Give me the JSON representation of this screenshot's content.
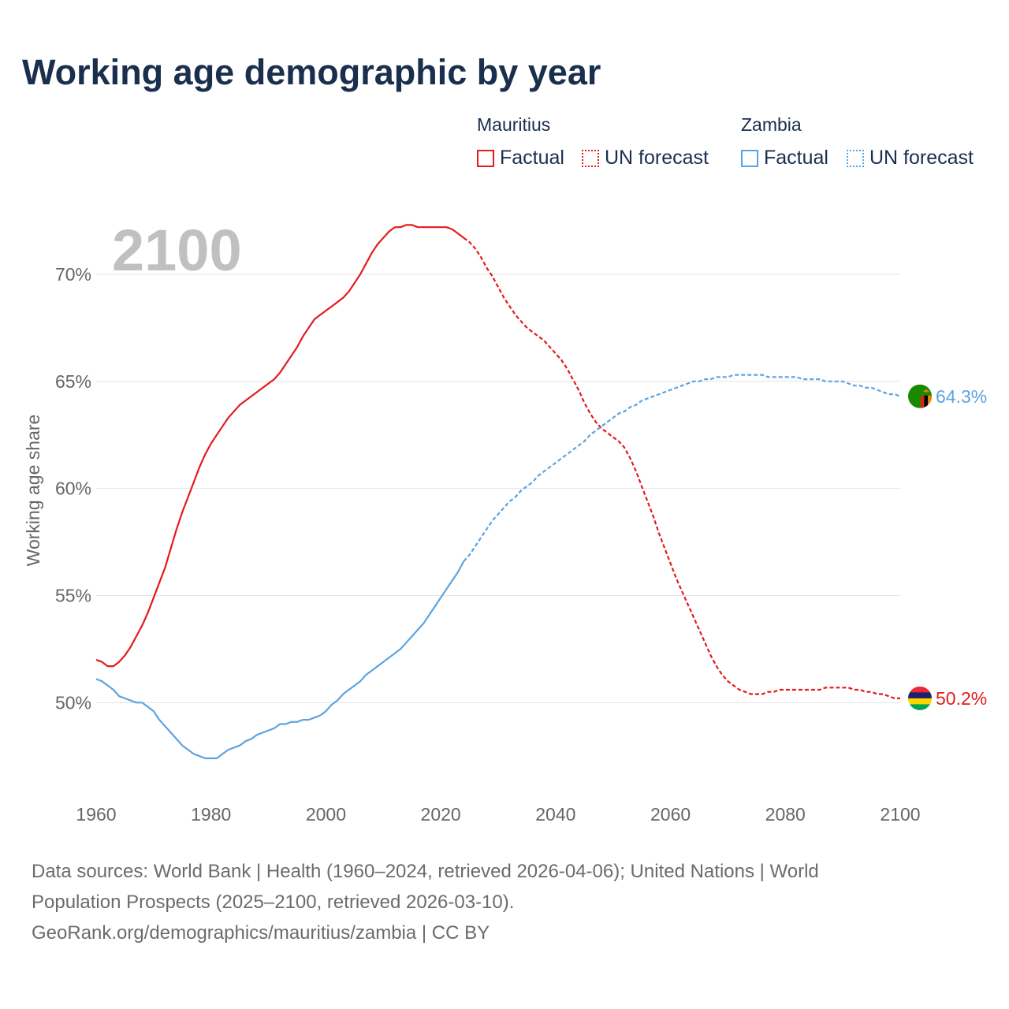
{
  "title": "Working age demographic by year",
  "year_label": "2100",
  "legend": {
    "groups": [
      {
        "name": "Mauritius",
        "color": "#e41a1c",
        "factual_label": "Factual",
        "forecast_label": "UN forecast"
      },
      {
        "name": "Zambia",
        "color": "#5ba3e0",
        "factual_label": "Factual",
        "forecast_label": "UN forecast"
      }
    ]
  },
  "footer": {
    "line1": "Data sources: World Bank | Health (1960–2024, retrieved 2026-04-06); United Nations | World",
    "line2": "Population Prospects (2025–2100, retrieved 2026-03-10).",
    "line3": "GeoRank.org/demographics/mauritius/zambia | CC BY"
  },
  "chart_data": {
    "type": "line",
    "title": "Working age demographic by year",
    "xlabel": "",
    "ylabel": "Working age share",
    "xlim": [
      1960,
      2100
    ],
    "ylim": [
      46,
      72.5
    ],
    "x_ticks": [
      1960,
      1980,
      2000,
      2020,
      2040,
      2060,
      2080,
      2100
    ],
    "y_ticks": [
      50,
      55,
      60,
      65,
      70
    ],
    "y_tick_labels": [
      "50%",
      "55%",
      "60%",
      "65%",
      "70%"
    ],
    "x_tick_labels": [
      "1960",
      "1980",
      "2000",
      "2020",
      "2040",
      "2060",
      "2080",
      "2100"
    ],
    "grid": true,
    "factual_end_year": 2024,
    "series": [
      {
        "name": "Mauritius",
        "color": "#e41a1c",
        "end_label": "50.2%",
        "flag": "mauritius",
        "points": [
          [
            1960,
            52.0
          ],
          [
            1961,
            51.9
          ],
          [
            1962,
            51.7
          ],
          [
            1963,
            51.7
          ],
          [
            1964,
            51.9
          ],
          [
            1965,
            52.2
          ],
          [
            1966,
            52.6
          ],
          [
            1967,
            53.1
          ],
          [
            1968,
            53.6
          ],
          [
            1969,
            54.2
          ],
          [
            1970,
            54.9
          ],
          [
            1971,
            55.6
          ],
          [
            1972,
            56.3
          ],
          [
            1973,
            57.2
          ],
          [
            1974,
            58.1
          ],
          [
            1975,
            58.9
          ],
          [
            1976,
            59.6
          ],
          [
            1977,
            60.3
          ],
          [
            1978,
            61.0
          ],
          [
            1979,
            61.6
          ],
          [
            1980,
            62.1
          ],
          [
            1981,
            62.5
          ],
          [
            1982,
            62.9
          ],
          [
            1983,
            63.3
          ],
          [
            1984,
            63.6
          ],
          [
            1985,
            63.9
          ],
          [
            1986,
            64.1
          ],
          [
            1987,
            64.3
          ],
          [
            1988,
            64.5
          ],
          [
            1989,
            64.7
          ],
          [
            1990,
            64.9
          ],
          [
            1991,
            65.1
          ],
          [
            1992,
            65.4
          ],
          [
            1993,
            65.8
          ],
          [
            1994,
            66.2
          ],
          [
            1995,
            66.6
          ],
          [
            1996,
            67.1
          ],
          [
            1997,
            67.5
          ],
          [
            1998,
            67.9
          ],
          [
            1999,
            68.1
          ],
          [
            2000,
            68.3
          ],
          [
            2001,
            68.5
          ],
          [
            2002,
            68.7
          ],
          [
            2003,
            68.9
          ],
          [
            2004,
            69.2
          ],
          [
            2005,
            69.6
          ],
          [
            2006,
            70.0
          ],
          [
            2007,
            70.5
          ],
          [
            2008,
            71.0
          ],
          [
            2009,
            71.4
          ],
          [
            2010,
            71.7
          ],
          [
            2011,
            72.0
          ],
          [
            2012,
            72.2
          ],
          [
            2013,
            72.2
          ],
          [
            2014,
            72.3
          ],
          [
            2015,
            72.3
          ],
          [
            2016,
            72.2
          ],
          [
            2017,
            72.2
          ],
          [
            2018,
            72.2
          ],
          [
            2019,
            72.2
          ],
          [
            2020,
            72.2
          ],
          [
            2021,
            72.2
          ],
          [
            2022,
            72.1
          ],
          [
            2023,
            71.9
          ],
          [
            2024,
            71.7
          ],
          [
            2025,
            71.5
          ],
          [
            2026,
            71.2
          ],
          [
            2027,
            70.8
          ],
          [
            2028,
            70.3
          ],
          [
            2029,
            69.9
          ],
          [
            2030,
            69.4
          ],
          [
            2031,
            68.9
          ],
          [
            2032,
            68.5
          ],
          [
            2033,
            68.1
          ],
          [
            2034,
            67.8
          ],
          [
            2035,
            67.5
          ],
          [
            2036,
            67.3
          ],
          [
            2037,
            67.1
          ],
          [
            2038,
            66.9
          ],
          [
            2039,
            66.6
          ],
          [
            2040,
            66.3
          ],
          [
            2041,
            66.0
          ],
          [
            2042,
            65.6
          ],
          [
            2043,
            65.1
          ],
          [
            2044,
            64.6
          ],
          [
            2045,
            64.0
          ],
          [
            2046,
            63.5
          ],
          [
            2047,
            63.1
          ],
          [
            2048,
            62.8
          ],
          [
            2049,
            62.6
          ],
          [
            2050,
            62.4
          ],
          [
            2051,
            62.2
          ],
          [
            2052,
            61.9
          ],
          [
            2053,
            61.4
          ],
          [
            2054,
            60.8
          ],
          [
            2055,
            60.1
          ],
          [
            2056,
            59.4
          ],
          [
            2057,
            58.7
          ],
          [
            2058,
            57.9
          ],
          [
            2059,
            57.2
          ],
          [
            2060,
            56.5
          ],
          [
            2061,
            55.8
          ],
          [
            2062,
            55.2
          ],
          [
            2063,
            54.6
          ],
          [
            2064,
            54.0
          ],
          [
            2065,
            53.4
          ],
          [
            2066,
            52.8
          ],
          [
            2067,
            52.2
          ],
          [
            2068,
            51.7
          ],
          [
            2069,
            51.3
          ],
          [
            2070,
            51.0
          ],
          [
            2071,
            50.8
          ],
          [
            2072,
            50.6
          ],
          [
            2073,
            50.5
          ],
          [
            2074,
            50.4
          ],
          [
            2075,
            50.4
          ],
          [
            2076,
            50.4
          ],
          [
            2077,
            50.5
          ],
          [
            2078,
            50.5
          ],
          [
            2079,
            50.6
          ],
          [
            2080,
            50.6
          ],
          [
            2081,
            50.6
          ],
          [
            2082,
            50.6
          ],
          [
            2083,
            50.6
          ],
          [
            2084,
            50.6
          ],
          [
            2085,
            50.6
          ],
          [
            2086,
            50.6
          ],
          [
            2087,
            50.7
          ],
          [
            2088,
            50.7
          ],
          [
            2089,
            50.7
          ],
          [
            2090,
            50.7
          ],
          [
            2091,
            50.7
          ],
          [
            2092,
            50.6
          ],
          [
            2093,
            50.6
          ],
          [
            2094,
            50.5
          ],
          [
            2095,
            50.5
          ],
          [
            2096,
            50.4
          ],
          [
            2097,
            50.4
          ],
          [
            2098,
            50.3
          ],
          [
            2099,
            50.2
          ],
          [
            2100,
            50.2
          ]
        ]
      },
      {
        "name": "Zambia",
        "color": "#5ba3e0",
        "end_label": "64.3%",
        "flag": "zambia",
        "points": [
          [
            1960,
            51.1
          ],
          [
            1961,
            51.0
          ],
          [
            1962,
            50.8
          ],
          [
            1963,
            50.6
          ],
          [
            1964,
            50.3
          ],
          [
            1965,
            50.2
          ],
          [
            1966,
            50.1
          ],
          [
            1967,
            50.0
          ],
          [
            1968,
            50.0
          ],
          [
            1969,
            49.8
          ],
          [
            1970,
            49.6
          ],
          [
            1971,
            49.2
          ],
          [
            1972,
            48.9
          ],
          [
            1973,
            48.6
          ],
          [
            1974,
            48.3
          ],
          [
            1975,
            48.0
          ],
          [
            1976,
            47.8
          ],
          [
            1977,
            47.6
          ],
          [
            1978,
            47.5
          ],
          [
            1979,
            47.4
          ],
          [
            1980,
            47.4
          ],
          [
            1981,
            47.4
          ],
          [
            1982,
            47.6
          ],
          [
            1983,
            47.8
          ],
          [
            1984,
            47.9
          ],
          [
            1985,
            48.0
          ],
          [
            1986,
            48.2
          ],
          [
            1987,
            48.3
          ],
          [
            1988,
            48.5
          ],
          [
            1989,
            48.6
          ],
          [
            1990,
            48.7
          ],
          [
            1991,
            48.8
          ],
          [
            1992,
            49.0
          ],
          [
            1993,
            49.0
          ],
          [
            1994,
            49.1
          ],
          [
            1995,
            49.1
          ],
          [
            1996,
            49.2
          ],
          [
            1997,
            49.2
          ],
          [
            1998,
            49.3
          ],
          [
            1999,
            49.4
          ],
          [
            2000,
            49.6
          ],
          [
            2001,
            49.9
          ],
          [
            2002,
            50.1
          ],
          [
            2003,
            50.4
          ],
          [
            2004,
            50.6
          ],
          [
            2005,
            50.8
          ],
          [
            2006,
            51.0
          ],
          [
            2007,
            51.3
          ],
          [
            2008,
            51.5
          ],
          [
            2009,
            51.7
          ],
          [
            2010,
            51.9
          ],
          [
            2011,
            52.1
          ],
          [
            2012,
            52.3
          ],
          [
            2013,
            52.5
          ],
          [
            2014,
            52.8
          ],
          [
            2015,
            53.1
          ],
          [
            2016,
            53.4
          ],
          [
            2017,
            53.7
          ],
          [
            2018,
            54.1
          ],
          [
            2019,
            54.5
          ],
          [
            2020,
            54.9
          ],
          [
            2021,
            55.3
          ],
          [
            2022,
            55.7
          ],
          [
            2023,
            56.1
          ],
          [
            2024,
            56.6
          ],
          [
            2025,
            56.9
          ],
          [
            2026,
            57.3
          ],
          [
            2027,
            57.7
          ],
          [
            2028,
            58.1
          ],
          [
            2029,
            58.5
          ],
          [
            2030,
            58.8
          ],
          [
            2031,
            59.1
          ],
          [
            2032,
            59.4
          ],
          [
            2033,
            59.6
          ],
          [
            2034,
            59.9
          ],
          [
            2035,
            60.1
          ],
          [
            2036,
            60.3
          ],
          [
            2037,
            60.6
          ],
          [
            2038,
            60.8
          ],
          [
            2039,
            61.0
          ],
          [
            2040,
            61.2
          ],
          [
            2041,
            61.4
          ],
          [
            2042,
            61.6
          ],
          [
            2043,
            61.8
          ],
          [
            2044,
            62.0
          ],
          [
            2045,
            62.2
          ],
          [
            2046,
            62.5
          ],
          [
            2047,
            62.7
          ],
          [
            2048,
            62.9
          ],
          [
            2049,
            63.1
          ],
          [
            2050,
            63.3
          ],
          [
            2051,
            63.5
          ],
          [
            2052,
            63.6
          ],
          [
            2053,
            63.8
          ],
          [
            2054,
            63.9
          ],
          [
            2055,
            64.1
          ],
          [
            2056,
            64.2
          ],
          [
            2057,
            64.3
          ],
          [
            2058,
            64.4
          ],
          [
            2059,
            64.5
          ],
          [
            2060,
            64.6
          ],
          [
            2061,
            64.7
          ],
          [
            2062,
            64.8
          ],
          [
            2063,
            64.9
          ],
          [
            2064,
            65.0
          ],
          [
            2065,
            65.0
          ],
          [
            2066,
            65.1
          ],
          [
            2067,
            65.1
          ],
          [
            2068,
            65.2
          ],
          [
            2069,
            65.2
          ],
          [
            2070,
            65.2
          ],
          [
            2071,
            65.3
          ],
          [
            2072,
            65.3
          ],
          [
            2073,
            65.3
          ],
          [
            2074,
            65.3
          ],
          [
            2075,
            65.3
          ],
          [
            2076,
            65.3
          ],
          [
            2077,
            65.2
          ],
          [
            2078,
            65.2
          ],
          [
            2079,
            65.2
          ],
          [
            2080,
            65.2
          ],
          [
            2081,
            65.2
          ],
          [
            2082,
            65.2
          ],
          [
            2083,
            65.1
          ],
          [
            2084,
            65.1
          ],
          [
            2085,
            65.1
          ],
          [
            2086,
            65.1
          ],
          [
            2087,
            65.0
          ],
          [
            2088,
            65.0
          ],
          [
            2089,
            65.0
          ],
          [
            2090,
            65.0
          ],
          [
            2091,
            64.9
          ],
          [
            2092,
            64.8
          ],
          [
            2093,
            64.8
          ],
          [
            2094,
            64.7
          ],
          [
            2095,
            64.7
          ],
          [
            2096,
            64.6
          ],
          [
            2097,
            64.5
          ],
          [
            2098,
            64.4
          ],
          [
            2099,
            64.4
          ],
          [
            2100,
            64.3
          ]
        ]
      }
    ]
  }
}
